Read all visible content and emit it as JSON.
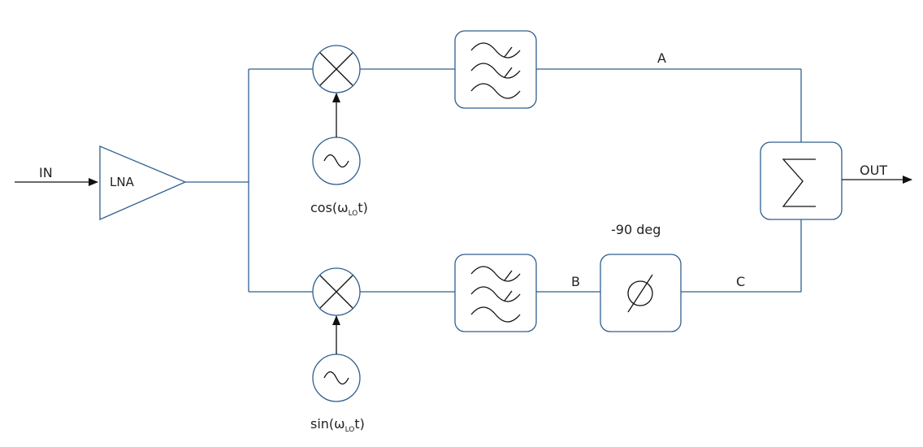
{
  "diagram": {
    "input_label": "IN",
    "output_label": "OUT",
    "lna_label": "LNA",
    "lo_cos": {
      "func": "cos(ω",
      "sub": "LO",
      "tail": "t)"
    },
    "lo_sin": {
      "func": "sin(ω",
      "sub": "LO",
      "tail": "t)"
    },
    "node_a": "A",
    "node_b": "B",
    "node_c": "C",
    "phase_shift": "-90 deg"
  },
  "icons": {
    "mixer": "mixer-x-icon",
    "oscillator": "sine-wave-icon",
    "filter": "bandpass-filter-icon",
    "phase": "phase-shift-icon",
    "summer": "sigma-icon"
  }
}
